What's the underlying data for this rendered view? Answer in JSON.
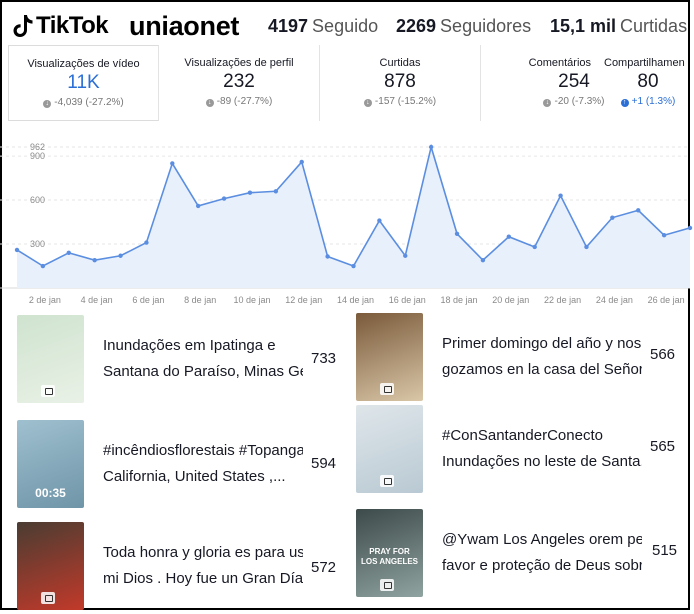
{
  "header": {
    "logo_text": "TikTok",
    "username": "uniaonet",
    "following": {
      "value": "4197",
      "label": "Seguido"
    },
    "followers": {
      "value": "2269",
      "label": "Seguidores"
    },
    "likes": {
      "value": "15,1 mil",
      "label": "Curtidas"
    }
  },
  "metrics": [
    {
      "title": "Visualizações de vídeo",
      "value": "11K",
      "delta": "-4,039 (-27.2%)",
      "direction": "down",
      "active": true
    },
    {
      "title": "Visualizações de perfil",
      "value": "232",
      "delta": "-89 (-27.7%)",
      "direction": "down",
      "active": false
    },
    {
      "title": "Curtidas",
      "value": "878",
      "delta": "-157 (-15.2%)",
      "direction": "down",
      "active": false
    },
    {
      "title": "Comentários",
      "value": "254",
      "delta": "-20 (-7.3%)",
      "direction": "down",
      "active": false
    },
    {
      "title": "Compartilhamen",
      "value": "80",
      "delta": "+1 (1.3%)",
      "direction": "up",
      "active": false
    }
  ],
  "chart_data": {
    "type": "area",
    "title": "",
    "xlabel": "",
    "ylabel": "",
    "ylim": [
      0,
      962
    ],
    "y_ticks": [
      300,
      600,
      900,
      962
    ],
    "x_tick_labels": [
      "2 de jan",
      "4 de jan",
      "6 de jan",
      "8 de jan",
      "10 de jan",
      "12 de jan",
      "14 de jan",
      "16 de jan",
      "18 de jan",
      "20 de jan",
      "22 de jan",
      "24 de jan",
      "26 de jan"
    ],
    "x": [
      1,
      2,
      3,
      4,
      5,
      6,
      7,
      8,
      9,
      10,
      11,
      12,
      13,
      14,
      15,
      16,
      17,
      18,
      19,
      20,
      21,
      22,
      23,
      24,
      25,
      26,
      27
    ],
    "values": [
      260,
      150,
      240,
      190,
      220,
      310,
      850,
      560,
      610,
      650,
      660,
      860,
      215,
      150,
      460,
      220,
      962,
      370,
      190,
      350,
      280,
      630,
      280,
      480,
      530,
      360,
      410
    ],
    "grid": "horizontal",
    "line_color": "#5b8ee0",
    "fill_color": "#e8f0fb"
  },
  "videos": [
    {
      "line1": "Inundações em Ipatinga e",
      "line2": "Santana do Paraíso, Minas Gerais",
      "views": "733",
      "duration": "",
      "thumb_colors": [
        "#cfe3cf",
        "#e9f1e6"
      ]
    },
    {
      "line1": "Primer domingo del año y nos",
      "line2": "gozamos en la casa del Señor,",
      "views": "566",
      "duration": "",
      "thumb_colors": [
        "#7a5a3a",
        "#d9c7a8"
      ]
    },
    {
      "line1": "#incêndiosflorestais #Topanga",
      "line2": "California, United States ,...",
      "views": "594",
      "duration": "00:35",
      "thumb_colors": [
        "#9fc0cf",
        "#6f95a8"
      ]
    },
    {
      "line1": "#ConSantanderConecto",
      "line2": "Inundações no leste de Santa...",
      "views": "565",
      "duration": "",
      "thumb_colors": [
        "#dfe6ea",
        "#b9c9d3"
      ]
    },
    {
      "line1": "Toda honra y gloria es para usted",
      "line2": "mi Dios . Hoy fue un Gran Día De",
      "views": "572",
      "duration": "",
      "thumb_colors": [
        "#4a3c32",
        "#c23a2a"
      ]
    },
    {
      "line1": "@Ywam Los Angeles orem pelo",
      "line2": "favor e proteção de Deus sobre",
      "views": "515",
      "duration": "",
      "thumb_colors": [
        "#3d4a4a",
        "#8fa3a0"
      ],
      "overlay_text": "PRAY FOR LOS ANGELES"
    }
  ]
}
